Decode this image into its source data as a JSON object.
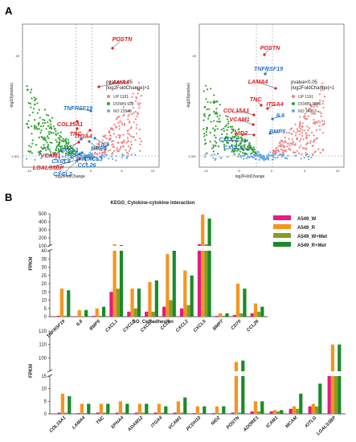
{
  "panels": {
    "a": "A",
    "b": "B"
  },
  "volcano": [
    {
      "xlabel": "log2FoldChange",
      "ylabel": "-log10(pvalue)",
      "yticks": [
        "40",
        "1.301"
      ],
      "xticks": [
        "-10",
        "-5",
        "0",
        "5",
        "10"
      ],
      "legend_title": "pvalue<0.05\n|log2FoldChange|>1",
      "legend": [
        {
          "label": "UP 1181",
          "color": "#f08080"
        },
        {
          "label": "DOWN 928",
          "color": "#2ca02c"
        },
        {
          "label": "NO 23548",
          "color": "#6aa8e8"
        }
      ],
      "genes": [
        {
          "name": "POSTN",
          "color": "#e41a1c"
        },
        {
          "name": "LAMA4",
          "color": "#e41a1c"
        },
        {
          "name": "TNFRSF19",
          "color": "#1f78c8"
        },
        {
          "name": "COL15A1",
          "color": "#e41a1c"
        },
        {
          "name": "TNC",
          "color": "#e41a1c"
        },
        {
          "name": "ITGA4",
          "color": "#e41a1c"
        },
        {
          "name": "IL6",
          "color": "#1f78c8"
        },
        {
          "name": "BMP5",
          "color": "#1f78c8"
        },
        {
          "name": "CXCL1",
          "color": "#1f78c8"
        },
        {
          "name": "VCAM1",
          "color": "#e41a1c"
        },
        {
          "name": "CXCL3",
          "color": "#1f78c8"
        },
        {
          "name": "CXCL8",
          "color": "#1f78c8"
        },
        {
          "name": "CCL26",
          "color": "#1f78c8"
        },
        {
          "name": "LGALS3BP",
          "color": "#e41a1c"
        },
        {
          "name": "CXCL2",
          "color": "#1f78c8"
        }
      ]
    },
    {
      "xlabel": "log2FoldChange",
      "ylabel": "-log10(pvalue)",
      "yticks": [
        "40",
        "1.301"
      ],
      "xticks": [
        "-10",
        "-5",
        "0",
        "5",
        "10"
      ],
      "legend_title": "pvalue<0.05\n|log2FoldChange|>1",
      "legend": [
        {
          "label": "UP 1191",
          "color": "#f08080"
        },
        {
          "label": "DOWN 1065",
          "color": "#2ca02c"
        },
        {
          "label": "NO 24863",
          "color": "#6aa8e8"
        }
      ],
      "genes": [
        {
          "name": "POSTN",
          "color": "#e41a1c"
        },
        {
          "name": "TNFRSF19",
          "color": "#1f78c8"
        },
        {
          "name": "LAMA4",
          "color": "#e41a1c"
        },
        {
          "name": "TNC",
          "color": "#e41a1c"
        },
        {
          "name": "ITGA4",
          "color": "#e41a1c"
        },
        {
          "name": "COL15A1",
          "color": "#e41a1c"
        },
        {
          "name": "IL6",
          "color": "#1f78c8"
        },
        {
          "name": "VCAM1",
          "color": "#e41a1c"
        },
        {
          "name": "NID2",
          "color": "#e41a1c"
        },
        {
          "name": "BMP5",
          "color": "#1f78c8"
        },
        {
          "name": "CXCL1",
          "color": "#1f78c8"
        },
        {
          "name": "CXCL3",
          "color": "#1f78c8"
        }
      ]
    }
  ],
  "chart_data": [
    {
      "type": "bar",
      "title": "KEGG_Cytokine-cytokine interaction",
      "ylabel": "FPKM",
      "ylim": [
        0,
        500
      ],
      "yticks": [
        0,
        5,
        10,
        15,
        20,
        25,
        30,
        35,
        40,
        100,
        200,
        300,
        400,
        500
      ],
      "break": {
        "low": 40,
        "high": 100
      },
      "categories": [
        "TNFRSF19",
        "IL6",
        "BMP5",
        "CXCL1",
        "CXCL3",
        "CXCL8",
        "CCL2",
        "CXCL2",
        "CXCL5",
        "BMP7",
        "CD70",
        "CCL26"
      ],
      "series": [
        {
          "name": "A549_W",
          "color": "#e8197f",
          "values": [
            0.5,
            0.3,
            0.5,
            15,
            3,
            3,
            6,
            5,
            120,
            0.5,
            1,
            2
          ]
        },
        {
          "name": "A549_R",
          "color": "#f7941d",
          "values": [
            17,
            4,
            5,
            120,
            17,
            21,
            38,
            28,
            490,
            2,
            20,
            8
          ]
        },
        {
          "name": "A549_W+Met",
          "color": "#8a9a28",
          "values": [
            0.5,
            0.3,
            0.5,
            17,
            5,
            3,
            10,
            7,
            120,
            0.5,
            2,
            3
          ]
        },
        {
          "name": "A549_R+Met",
          "color": "#1a8a2a",
          "values": [
            16,
            4,
            6,
            110,
            17,
            22,
            40,
            25,
            440,
            2,
            17,
            6
          ]
        }
      ]
    },
    {
      "type": "bar",
      "title": "GO_Cell adhesion",
      "ylabel": "FPKM",
      "ylim": [
        0,
        120
      ],
      "yticks": [
        0,
        5,
        10,
        15,
        100,
        110,
        120
      ],
      "break": {
        "low": 15,
        "high": 90
      },
      "categories": [
        "COL15A1",
        "LAMA4",
        "TNC",
        "EPHA4",
        "ADAM12",
        "ITGA4",
        "VCAM1",
        "PCDH10",
        "NID2",
        "POSTN",
        "ADORE1",
        "ICAM1",
        "MCAM",
        "KITLG",
        "LGALS3BP"
      ],
      "series": [
        {
          "name": "A549_W",
          "color": "#e8197f",
          "values": [
            0.5,
            0.3,
            0.5,
            0.5,
            0.5,
            0.5,
            0.5,
            0.3,
            0.3,
            0.5,
            1,
            1,
            2,
            3,
            15
          ]
        },
        {
          "name": "A549_R",
          "color": "#f7941d",
          "values": [
            8,
            4,
            4,
            5,
            4,
            4,
            5,
            3,
            3,
            97,
            5,
            1.5,
            3,
            4,
            110
          ]
        },
        {
          "name": "A549_W+Met",
          "color": "#8a9a28",
          "values": [
            0.5,
            0.3,
            0.5,
            0.5,
            0.5,
            0.5,
            0.5,
            0.3,
            0.3,
            0.5,
            1,
            1,
            2,
            3,
            15
          ]
        },
        {
          "name": "A549_R+Met",
          "color": "#1a8a2a",
          "values": [
            7,
            4,
            4,
            4,
            4,
            3,
            6.5,
            3,
            3,
            98,
            5,
            1.5,
            8,
            12,
            110
          ]
        }
      ]
    }
  ]
}
